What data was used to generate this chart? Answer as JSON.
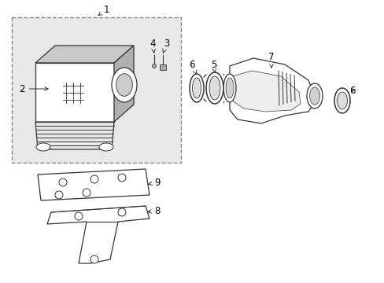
{
  "background_color": "#ffffff",
  "line_color": "#333333",
  "text_color": "#000000",
  "box_fill": "#e0e0e0",
  "figsize": [
    4.89,
    3.6
  ],
  "dpi": 100
}
